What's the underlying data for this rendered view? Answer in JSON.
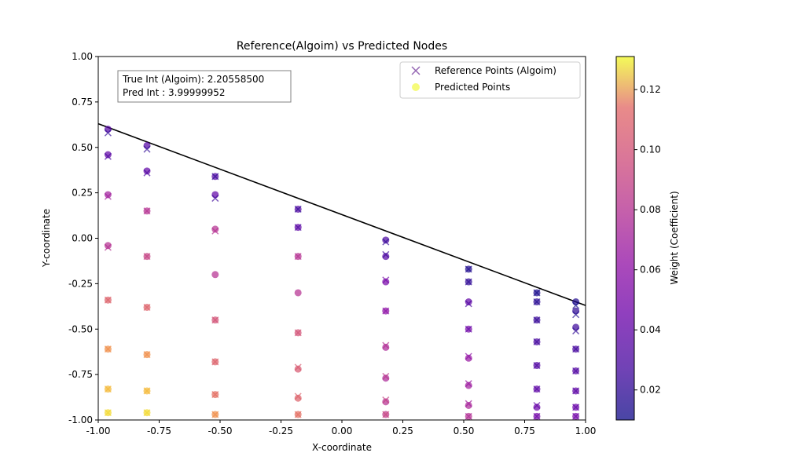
{
  "chart_data": {
    "type": "scatter",
    "title": "Reference(Algoim) vs Predicted Nodes",
    "xlabel": "X-coordinate",
    "ylabel": "Y-coordinate",
    "xlim": [
      -1.0,
      1.0
    ],
    "ylim": [
      -1.0,
      1.0
    ],
    "x_ticks": [
      "-1.00",
      "-0.75",
      "-0.50",
      "-0.25",
      "0.00",
      "0.25",
      "0.50",
      "0.75",
      "1.00"
    ],
    "y_ticks": [
      "-1.00",
      "-0.75",
      "-0.50",
      "-0.25",
      "0.00",
      "0.25",
      "0.50",
      "0.75",
      "1.00"
    ],
    "grid": false,
    "legend_position": "top-right",
    "info_box": {
      "line1": "True Int (Algoim): 2.20558500",
      "line2": "Pred Int : 3.99999952"
    },
    "colorbar": {
      "label": "Weight (Coefficient)",
      "range": [
        0.01,
        0.131
      ],
      "ticks": [
        "0.02",
        "0.04",
        "0.06",
        "0.08",
        "0.10",
        "0.12"
      ],
      "colormap": "plasma"
    },
    "boundary_line": {
      "x": [
        -1.0,
        1.0
      ],
      "y": [
        0.63,
        -0.37
      ],
      "color": "#000000"
    },
    "series": [
      {
        "name": "Reference Points (Algoim)",
        "marker": "x",
        "points": [
          [
            -0.96,
            0.58,
            0.02
          ],
          [
            -0.96,
            0.45,
            0.03
          ],
          [
            -0.96,
            0.23,
            0.07
          ],
          [
            -0.96,
            -0.05,
            0.08
          ],
          [
            -0.96,
            -0.34,
            0.11
          ],
          [
            -0.96,
            -0.61,
            0.12
          ],
          [
            -0.96,
            -0.83,
            0.125
          ],
          [
            -0.96,
            -0.96,
            0.128
          ],
          [
            -0.8,
            0.49,
            0.02
          ],
          [
            -0.8,
            0.36,
            0.03
          ],
          [
            -0.8,
            0.15,
            0.08
          ],
          [
            -0.8,
            -0.1,
            0.09
          ],
          [
            -0.8,
            -0.38,
            0.11
          ],
          [
            -0.8,
            -0.64,
            0.12
          ],
          [
            -0.8,
            -0.84,
            0.125
          ],
          [
            -0.8,
            -0.96,
            0.128
          ],
          [
            -0.52,
            0.34,
            0.02
          ],
          [
            -0.52,
            0.22,
            0.025
          ],
          [
            -0.52,
            0.04,
            0.08
          ],
          [
            -0.52,
            -0.45,
            0.1
          ],
          [
            -0.52,
            -0.68,
            0.11
          ],
          [
            -0.52,
            -0.86,
            0.115
          ],
          [
            -0.52,
            -0.97,
            0.12
          ],
          [
            -0.18,
            0.16,
            0.02
          ],
          [
            -0.18,
            0.06,
            0.03
          ],
          [
            -0.18,
            -0.1,
            0.08
          ],
          [
            -0.18,
            -0.52,
            0.1
          ],
          [
            -0.18,
            -0.71,
            0.105
          ],
          [
            -0.18,
            -0.87,
            0.11
          ],
          [
            -0.18,
            -0.97,
            0.115
          ],
          [
            0.18,
            -0.02,
            0.02
          ],
          [
            0.18,
            -0.09,
            0.025
          ],
          [
            0.18,
            -0.23,
            0.05
          ],
          [
            0.18,
            -0.4,
            0.06
          ],
          [
            0.18,
            -0.59,
            0.08
          ],
          [
            0.18,
            -0.76,
            0.085
          ],
          [
            0.18,
            -0.89,
            0.09
          ],
          [
            0.18,
            -0.97,
            0.095
          ],
          [
            0.52,
            -0.17,
            0.015
          ],
          [
            0.52,
            -0.24,
            0.02
          ],
          [
            0.52,
            -0.36,
            0.03
          ],
          [
            0.52,
            -0.5,
            0.04
          ],
          [
            0.52,
            -0.65,
            0.06
          ],
          [
            0.52,
            -0.8,
            0.065
          ],
          [
            0.52,
            -0.91,
            0.07
          ],
          [
            0.52,
            -0.98,
            0.075
          ],
          [
            0.8,
            -0.3,
            0.01
          ],
          [
            0.8,
            -0.35,
            0.015
          ],
          [
            0.8,
            -0.45,
            0.02
          ],
          [
            0.8,
            -0.57,
            0.025
          ],
          [
            0.8,
            -0.7,
            0.03
          ],
          [
            0.8,
            -0.83,
            0.035
          ],
          [
            0.8,
            -0.92,
            0.04
          ],
          [
            0.8,
            -0.98,
            0.045
          ],
          [
            0.96,
            -0.37,
            0.01
          ],
          [
            0.96,
            -0.42,
            0.015
          ],
          [
            0.96,
            -0.51,
            0.02
          ],
          [
            0.96,
            -0.61,
            0.025
          ],
          [
            0.96,
            -0.73,
            0.03
          ],
          [
            0.96,
            -0.84,
            0.035
          ],
          [
            0.96,
            -0.93,
            0.04
          ],
          [
            0.96,
            -0.98,
            0.045
          ]
        ]
      },
      {
        "name": "Predicted Points",
        "marker": "o",
        "points": [
          [
            -0.96,
            0.6,
            0.035
          ],
          [
            -0.96,
            0.46,
            0.04
          ],
          [
            -0.96,
            0.24,
            0.07
          ],
          [
            -0.96,
            -0.04,
            0.08
          ],
          [
            -0.96,
            -0.34,
            0.11
          ],
          [
            -0.96,
            -0.61,
            0.12
          ],
          [
            -0.96,
            -0.83,
            0.125
          ],
          [
            -0.96,
            -0.96,
            0.128
          ],
          [
            -0.8,
            0.51,
            0.035
          ],
          [
            -0.8,
            0.37,
            0.04
          ],
          [
            -0.8,
            0.15,
            0.08
          ],
          [
            -0.8,
            -0.1,
            0.09
          ],
          [
            -0.8,
            -0.38,
            0.11
          ],
          [
            -0.8,
            -0.64,
            0.12
          ],
          [
            -0.8,
            -0.84,
            0.125
          ],
          [
            -0.8,
            -0.96,
            0.128
          ],
          [
            -0.52,
            0.34,
            0.035
          ],
          [
            -0.52,
            0.24,
            0.04
          ],
          [
            -0.52,
            0.05,
            0.08
          ],
          [
            -0.52,
            -0.2,
            0.08
          ],
          [
            -0.52,
            -0.45,
            0.1
          ],
          [
            -0.52,
            -0.68,
            0.11
          ],
          [
            -0.52,
            -0.86,
            0.115
          ],
          [
            -0.52,
            -0.97,
            0.12
          ],
          [
            -0.18,
            0.16,
            0.035
          ],
          [
            -0.18,
            0.06,
            0.04
          ],
          [
            -0.18,
            -0.1,
            0.08
          ],
          [
            -0.18,
            -0.3,
            0.08
          ],
          [
            -0.18,
            -0.52,
            0.1
          ],
          [
            -0.18,
            -0.72,
            0.105
          ],
          [
            -0.18,
            -0.88,
            0.11
          ],
          [
            -0.18,
            -0.97,
            0.115
          ],
          [
            0.18,
            -0.01,
            0.03
          ],
          [
            0.18,
            -0.1,
            0.035
          ],
          [
            0.18,
            -0.24,
            0.05
          ],
          [
            0.18,
            -0.4,
            0.06
          ],
          [
            0.18,
            -0.6,
            0.075
          ],
          [
            0.18,
            -0.77,
            0.075
          ],
          [
            0.18,
            -0.9,
            0.08
          ],
          [
            0.18,
            -0.97,
            0.085
          ],
          [
            0.52,
            -0.17,
            0.015
          ],
          [
            0.52,
            -0.24,
            0.02
          ],
          [
            0.52,
            -0.35,
            0.04
          ],
          [
            0.52,
            -0.5,
            0.05
          ],
          [
            0.52,
            -0.66,
            0.065
          ],
          [
            0.52,
            -0.81,
            0.07
          ],
          [
            0.52,
            -0.92,
            0.075
          ],
          [
            0.52,
            -0.98,
            0.08
          ],
          [
            0.8,
            -0.3,
            0.015
          ],
          [
            0.8,
            -0.35,
            0.02
          ],
          [
            0.8,
            -0.45,
            0.025
          ],
          [
            0.8,
            -0.57,
            0.03
          ],
          [
            0.8,
            -0.7,
            0.035
          ],
          [
            0.8,
            -0.83,
            0.04
          ],
          [
            0.8,
            -0.93,
            0.045
          ],
          [
            0.8,
            -0.98,
            0.05
          ],
          [
            0.96,
            -0.35,
            0.015
          ],
          [
            0.96,
            -0.4,
            0.02
          ],
          [
            0.96,
            -0.49,
            0.025
          ],
          [
            0.96,
            -0.61,
            0.03
          ],
          [
            0.96,
            -0.73,
            0.035
          ],
          [
            0.96,
            -0.84,
            0.04
          ],
          [
            0.96,
            -0.93,
            0.045
          ],
          [
            0.96,
            -0.98,
            0.05
          ]
        ]
      }
    ]
  }
}
